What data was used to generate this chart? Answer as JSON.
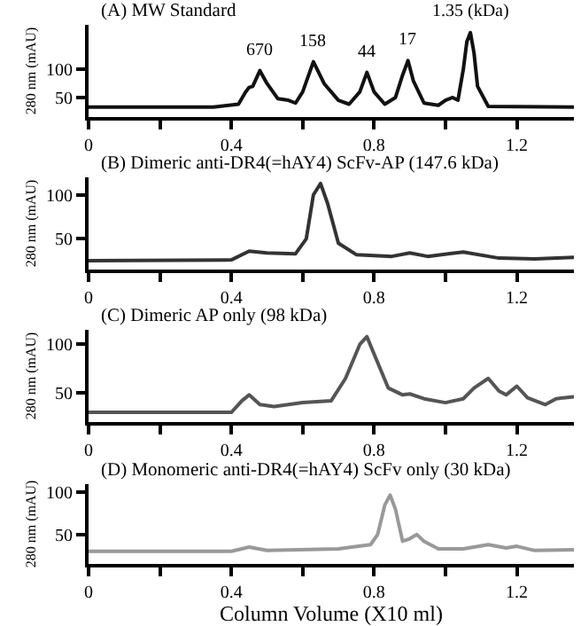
{
  "chart_data": [
    {
      "type": "line",
      "title": "(A) MW Standard",
      "ylabel": "280 nm (mAU)",
      "series": [
        {
          "color": "#111111",
          "x": [
            0,
            0.35,
            0.42,
            0.44,
            0.45,
            0.46,
            0.48,
            0.5,
            0.53,
            0.56,
            0.58,
            0.6,
            0.63,
            0.66,
            0.7,
            0.73,
            0.76,
            0.78,
            0.8,
            0.83,
            0.86,
            0.88,
            0.895,
            0.91,
            0.94,
            0.98,
            1.0,
            1.02,
            1.035,
            1.05,
            1.06,
            1.07,
            1.08,
            1.09,
            1.12,
            1.36
          ],
          "values": [
            33,
            33,
            38,
            60,
            68,
            70,
            98,
            75,
            48,
            45,
            40,
            60,
            114,
            75,
            45,
            38,
            60,
            95,
            60,
            38,
            50,
            90,
            116,
            80,
            40,
            36,
            45,
            50,
            45,
            100,
            150,
            166,
            130,
            70,
            34,
            33
          ]
        }
      ],
      "annotations": [
        {
          "text": "670",
          "x": 0.48,
          "y": 98
        },
        {
          "text": "158",
          "x": 0.63,
          "y": 114
        },
        {
          "text": "44",
          "x": 0.78,
          "y": 95
        },
        {
          "text": "17",
          "x": 0.895,
          "y": 116
        },
        {
          "text": "1.35 (kDa)",
          "x": 1.07,
          "y": 166
        }
      ],
      "xlim": [
        0,
        1.36
      ],
      "xticks": [
        0,
        {
          "value": 0.2,
          "label": null
        },
        0.4,
        {
          "value": 0.6,
          "label": null
        },
        0.8,
        {
          "value": 1.0,
          "label": null
        },
        1.2
      ],
      "ylim": [
        15,
        180
      ],
      "yticks": [
        50,
        100
      ],
      "line_style": "solid"
    },
    {
      "type": "line",
      "title": "(B) Dimeric anti-DR4(=hAY4) ScFv-AP (147.6 kDa)",
      "ylabel": "280 nm (mAU)",
      "series": [
        {
          "color": "#333333",
          "x": [
            0,
            0.4,
            0.45,
            0.5,
            0.58,
            0.61,
            0.63,
            0.65,
            0.67,
            0.7,
            0.75,
            0.85,
            0.9,
            0.95,
            1.05,
            1.15,
            1.25,
            1.36
          ],
          "values": [
            25,
            26,
            36,
            34,
            33,
            50,
            100,
            113,
            90,
            45,
            32,
            30,
            34,
            30,
            35,
            28,
            27,
            29
          ]
        }
      ],
      "xlim": [
        0,
        1.36
      ],
      "xticks": [
        0,
        {
          "value": 0.2,
          "label": null
        },
        0.4,
        {
          "value": 0.6,
          "label": null
        },
        0.8,
        {
          "value": 1.0,
          "label": null
        },
        1.2
      ],
      "ylim": [
        15,
        120
      ],
      "yticks": [
        50,
        100
      ],
      "line_style": "solid"
    },
    {
      "type": "line",
      "title": "(C) Dimeric AP only (98 kDa)",
      "ylabel": "280 nm (mAU)",
      "series": [
        {
          "color": "#555555",
          "x": [
            0,
            0.4,
            0.43,
            0.45,
            0.48,
            0.52,
            0.6,
            0.68,
            0.72,
            0.76,
            0.78,
            0.8,
            0.84,
            0.88,
            0.9,
            0.94,
            1.0,
            1.05,
            1.08,
            1.12,
            1.15,
            1.17,
            1.2,
            1.23,
            1.28,
            1.31,
            1.33,
            1.36
          ],
          "values": [
            30,
            30,
            42,
            48,
            38,
            36,
            40,
            42,
            65,
            100,
            108,
            90,
            55,
            48,
            49,
            44,
            40,
            44,
            55,
            65,
            52,
            48,
            57,
            45,
            38,
            44,
            45,
            46
          ]
        }
      ],
      "xlim": [
        0,
        1.36
      ],
      "xticks": [
        0,
        {
          "value": 0.2,
          "label": null
        },
        0.4,
        {
          "value": 0.6,
          "label": null
        },
        0.8,
        {
          "value": 1.0,
          "label": null
        },
        1.2
      ],
      "ylim": [
        20,
        115
      ],
      "yticks": [
        50,
        100
      ],
      "line_style": "solid"
    },
    {
      "type": "line",
      "title": "(D) Monomeric anti-DR4(=hAY4) ScFv only (30 kDa)",
      "ylabel": "280 nm (mAU)",
      "xlabel": "Column Volume (X10 ml)",
      "series": [
        {
          "color": "#999999",
          "x": [
            0,
            0.4,
            0.45,
            0.5,
            0.7,
            0.79,
            0.81,
            0.83,
            0.845,
            0.86,
            0.88,
            0.9,
            0.92,
            0.94,
            0.98,
            1.05,
            1.12,
            1.17,
            1.2,
            1.25,
            1.36
          ],
          "values": [
            30,
            30,
            35,
            31,
            33,
            38,
            50,
            85,
            97,
            80,
            42,
            45,
            50,
            42,
            33,
            33,
            38,
            34,
            36,
            31,
            32
          ]
        }
      ],
      "xlim": [
        0,
        1.36
      ],
      "xticks": [
        0,
        {
          "value": 0.2,
          "label": null
        },
        0.4,
        {
          "value": 0.6,
          "label": null
        },
        0.8,
        {
          "value": 1.0,
          "label": null
        },
        1.2
      ],
      "ylim": [
        15,
        110
      ],
      "yticks": [
        50,
        100
      ],
      "line_style": "solid"
    }
  ]
}
